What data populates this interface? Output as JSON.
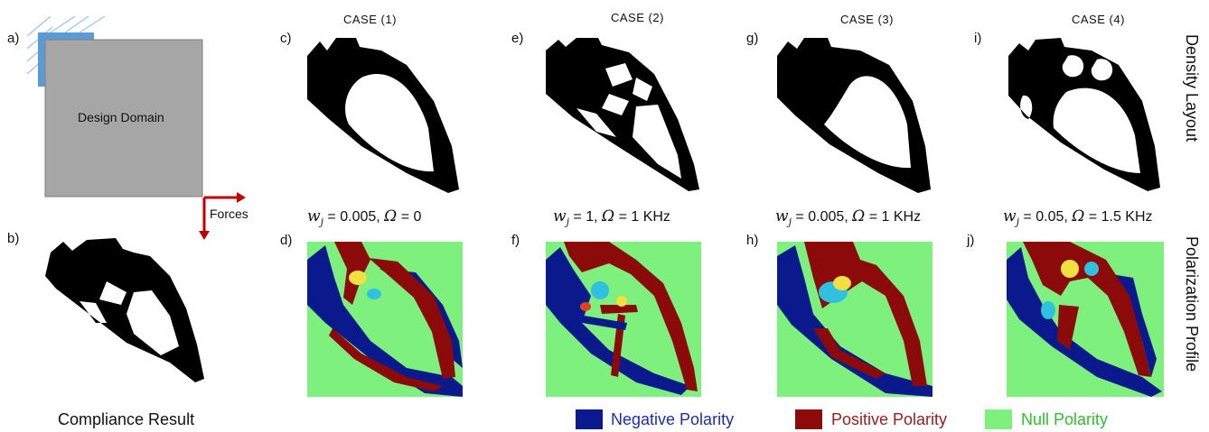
{
  "panels": {
    "a": "a)",
    "b": "b)",
    "c": "c)",
    "d": "d)",
    "e": "e)",
    "f": "f)",
    "g": "g)",
    "h": "h)",
    "i": "i)",
    "j": "j)"
  },
  "design_domain_label": "Design Domain",
  "forces_label": "Forces",
  "compliance_label": "Compliance Result",
  "cases": [
    {
      "title": "CASE (1)",
      "w": "0.005",
      "omega": "0"
    },
    {
      "title": "CASE (2)",
      "w": "1",
      "omega": "1 KHz"
    },
    {
      "title": "CASE (3)",
      "w": "0.005",
      "omega": "1 KHz"
    },
    {
      "title": "CASE (4)",
      "w": "0.05",
      "omega": "1.5 KHz"
    }
  ],
  "side_labels": {
    "density": "Density Layout",
    "polarization": "Polarization Profile"
  },
  "legend": [
    {
      "label": "Negative Polarity",
      "color": "#0a1a8c"
    },
    {
      "label": "Positive Polarity",
      "color": "#8c0a0a"
    },
    {
      "label": "Null Polarity",
      "color": "#7ef07e"
    }
  ],
  "colors": {
    "domain_fill": "#a6a6a6",
    "support": "#5b9bd5",
    "force_arrow": "#c00000"
  }
}
